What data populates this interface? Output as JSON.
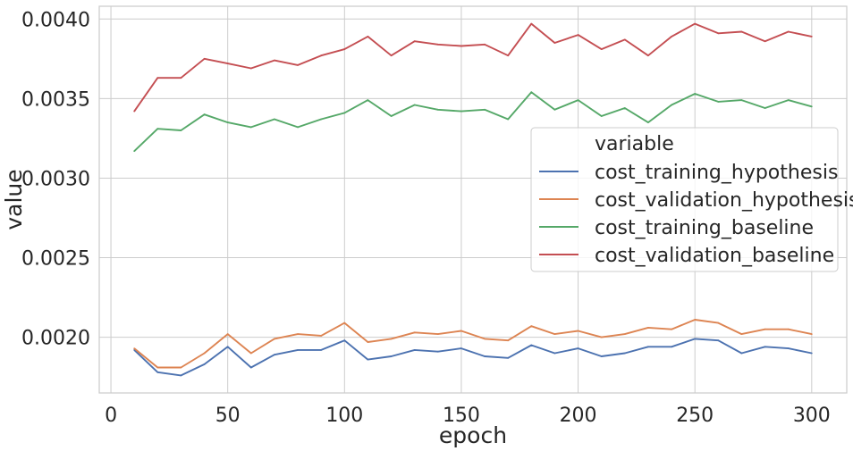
{
  "chart_data": {
    "type": "line",
    "xlabel": "epoch",
    "ylabel": "value",
    "xlim": [
      -5,
      315
    ],
    "ylim": [
      0.00165,
      0.00408
    ],
    "xticks": [
      0,
      50,
      100,
      150,
      200,
      250,
      300
    ],
    "xtick_labels": [
      "0",
      "50",
      "100",
      "150",
      "200",
      "250",
      "300"
    ],
    "yticks": [
      0.002,
      0.0025,
      0.003,
      0.0035,
      0.004
    ],
    "ytick_labels": [
      "0.0020",
      "0.0025",
      "0.0030",
      "0.0035",
      "0.0040"
    ],
    "grid": true,
    "legend": {
      "title": "variable",
      "placement": "center-right"
    },
    "x": [
      10,
      20,
      30,
      40,
      50,
      60,
      70,
      80,
      90,
      100,
      110,
      120,
      130,
      140,
      150,
      160,
      170,
      180,
      190,
      200,
      210,
      220,
      230,
      240,
      250,
      260,
      270,
      280,
      290,
      300
    ],
    "series": [
      {
        "name": "cost_training_hypothesis",
        "color": "#4c72b0",
        "values": [
          0.00192,
          0.00178,
          0.00176,
          0.00183,
          0.00194,
          0.00181,
          0.00189,
          0.00192,
          0.00192,
          0.00198,
          0.00186,
          0.00188,
          0.00192,
          0.00191,
          0.00193,
          0.00188,
          0.00187,
          0.00195,
          0.0019,
          0.00193,
          0.00188,
          0.0019,
          0.00194,
          0.00194,
          0.00199,
          0.00198,
          0.0019,
          0.00194,
          0.00193,
          0.0019
        ]
      },
      {
        "name": "cost_validation_hypothesis",
        "color": "#dd8452",
        "values": [
          0.00193,
          0.00181,
          0.00181,
          0.0019,
          0.00202,
          0.0019,
          0.00199,
          0.00202,
          0.00201,
          0.00209,
          0.00197,
          0.00199,
          0.00203,
          0.00202,
          0.00204,
          0.00199,
          0.00198,
          0.00207,
          0.00202,
          0.00204,
          0.002,
          0.00202,
          0.00206,
          0.00205,
          0.00211,
          0.00209,
          0.00202,
          0.00205,
          0.00205,
          0.00202
        ]
      },
      {
        "name": "cost_training_baseline",
        "color": "#55a868",
        "values": [
          0.00317,
          0.00331,
          0.0033,
          0.0034,
          0.00335,
          0.00332,
          0.00337,
          0.00332,
          0.00337,
          0.00341,
          0.00349,
          0.00339,
          0.00346,
          0.00343,
          0.00342,
          0.00343,
          0.00337,
          0.00354,
          0.00343,
          0.00349,
          0.00339,
          0.00344,
          0.00335,
          0.00346,
          0.00353,
          0.00348,
          0.00349,
          0.00344,
          0.00349,
          0.00345
        ]
      },
      {
        "name": "cost_validation_baseline",
        "color": "#c44e52",
        "values": [
          0.00342,
          0.00363,
          0.00363,
          0.00375,
          0.00372,
          0.00369,
          0.00374,
          0.00371,
          0.00377,
          0.00381,
          0.00389,
          0.00377,
          0.00386,
          0.00384,
          0.00383,
          0.00384,
          0.00377,
          0.00397,
          0.00385,
          0.0039,
          0.00381,
          0.00387,
          0.00377,
          0.00389,
          0.00397,
          0.00391,
          0.00392,
          0.00386,
          0.00392,
          0.00389
        ]
      }
    ]
  }
}
